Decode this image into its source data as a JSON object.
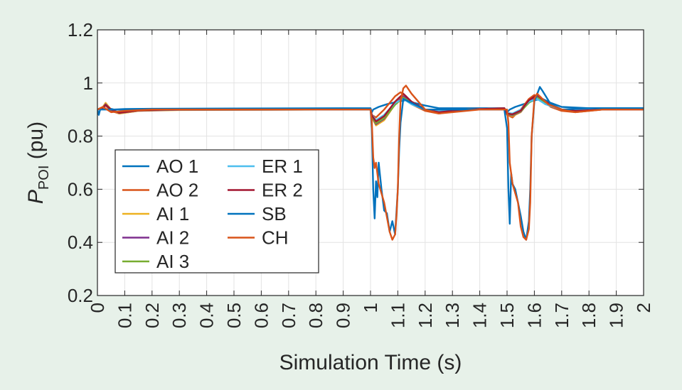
{
  "chart_data": {
    "type": "line",
    "title": "",
    "xlabel": "Simulation Time (s)",
    "ylabel": {
      "main": "P",
      "sub": "POI",
      "suffix": " (pu)"
    },
    "xlim": [
      0,
      2
    ],
    "ylim": [
      0.2,
      1.2
    ],
    "grid": true,
    "legend_position": "lower-left",
    "xticks": [
      0,
      0.1,
      0.2,
      0.3,
      0.4,
      0.5,
      0.6,
      0.7,
      0.8,
      0.9,
      1,
      1.1,
      1.2,
      1.3,
      1.4,
      1.5,
      1.6,
      1.7,
      1.8,
      1.9,
      2
    ],
    "xtick_labels": [
      "0",
      "0.1",
      "0.2",
      "0.3",
      "0.4",
      "0.5",
      "0.6",
      "0.7",
      "0.8",
      "0.9",
      "1",
      "1.1",
      "1.2",
      "1.3",
      "1.4",
      "1.5",
      "1.6",
      "1.7",
      "1.8",
      "1.9",
      "2"
    ],
    "yticks": [
      0.2,
      0.4,
      0.6,
      0.8,
      1.0,
      1.2
    ],
    "ytick_labels": [
      "0.2",
      "0.4",
      "0.6",
      "0.8",
      "1",
      "1.2"
    ],
    "series": [
      {
        "name": "AO 1",
        "color": "#0072bd",
        "x": [
          0,
          0.02,
          0.03,
          0.04,
          0.06,
          0.1,
          0.2,
          0.5,
          0.9,
          1.0,
          1.005,
          1.01,
          1.03,
          1.06,
          1.1,
          1.13,
          1.16,
          1.2,
          1.25,
          1.3,
          1.4,
          1.49,
          1.5,
          1.51,
          1.53,
          1.56,
          1.6,
          1.63,
          1.66,
          1.7,
          1.8,
          2.0
        ],
        "y": [
          0.9,
          0.905,
          0.915,
          0.905,
          0.9,
          0.902,
          0.903,
          0.904,
          0.905,
          0.905,
          0.89,
          0.9,
          0.91,
          0.92,
          0.93,
          0.935,
          0.925,
          0.915,
          0.905,
          0.905,
          0.905,
          0.905,
          0.89,
          0.9,
          0.91,
          0.92,
          0.935,
          0.94,
          0.925,
          0.91,
          0.905,
          0.905
        ]
      },
      {
        "name": "AO 2",
        "color": "#d95319",
        "x": [
          0,
          0.02,
          0.03,
          0.05,
          0.08,
          0.15,
          0.3,
          0.9,
          1.0,
          1.005,
          1.02,
          1.05,
          1.09,
          1.11,
          1.13,
          1.15,
          1.2,
          1.25,
          1.35,
          1.49,
          1.5,
          1.52,
          1.55,
          1.58,
          1.6,
          1.63,
          1.66,
          1.7,
          1.75,
          1.85,
          2.0
        ],
        "y": [
          0.9,
          0.905,
          0.915,
          0.895,
          0.885,
          0.895,
          0.9,
          0.9,
          0.9,
          0.88,
          0.87,
          0.9,
          0.95,
          0.965,
          0.95,
          0.92,
          0.895,
          0.885,
          0.9,
          0.905,
          0.88,
          0.87,
          0.9,
          0.94,
          0.955,
          0.935,
          0.91,
          0.895,
          0.89,
          0.9,
          0.9
        ]
      },
      {
        "name": "AI 1",
        "color": "#edb120",
        "x": [
          0,
          0.02,
          0.03,
          0.05,
          0.08,
          0.15,
          0.3,
          0.9,
          1.0,
          1.005,
          1.02,
          1.05,
          1.09,
          1.12,
          1.15,
          1.2,
          1.25,
          1.35,
          1.49,
          1.5,
          1.52,
          1.55,
          1.58,
          1.61,
          1.64,
          1.7,
          1.75,
          1.85,
          2.0
        ],
        "y": [
          0.9,
          0.91,
          0.925,
          0.9,
          0.885,
          0.895,
          0.898,
          0.9,
          0.9,
          0.87,
          0.84,
          0.86,
          0.92,
          0.955,
          0.93,
          0.9,
          0.89,
          0.9,
          0.905,
          0.88,
          0.875,
          0.89,
          0.93,
          0.955,
          0.93,
          0.9,
          0.895,
          0.9,
          0.9
        ]
      },
      {
        "name": "AI 2",
        "color": "#7e2f8e",
        "x": [
          0,
          0.02,
          0.03,
          0.05,
          0.08,
          0.15,
          0.3,
          0.9,
          1.0,
          1.005,
          1.02,
          1.05,
          1.09,
          1.12,
          1.15,
          1.2,
          1.25,
          1.35,
          1.49,
          1.5,
          1.52,
          1.55,
          1.58,
          1.61,
          1.64,
          1.7,
          1.75,
          1.85,
          2.0
        ],
        "y": [
          0.9,
          0.908,
          0.92,
          0.9,
          0.887,
          0.896,
          0.899,
          0.9,
          0.9,
          0.872,
          0.845,
          0.865,
          0.92,
          0.95,
          0.928,
          0.9,
          0.892,
          0.9,
          0.905,
          0.882,
          0.878,
          0.892,
          0.928,
          0.95,
          0.928,
          0.9,
          0.896,
          0.9,
          0.9
        ]
      },
      {
        "name": "AI 3",
        "color": "#77ac30",
        "x": [
          0,
          0.02,
          0.03,
          0.05,
          0.08,
          0.15,
          0.3,
          0.9,
          1.0,
          1.005,
          1.02,
          1.05,
          1.09,
          1.12,
          1.15,
          1.2,
          1.25,
          1.35,
          1.49,
          1.5,
          1.52,
          1.55,
          1.58,
          1.61,
          1.64,
          1.7,
          1.75,
          1.85,
          2.0
        ],
        "y": [
          0.9,
          0.907,
          0.918,
          0.9,
          0.888,
          0.897,
          0.9,
          0.9,
          0.9,
          0.874,
          0.848,
          0.868,
          0.918,
          0.945,
          0.925,
          0.9,
          0.893,
          0.9,
          0.905,
          0.884,
          0.88,
          0.894,
          0.925,
          0.945,
          0.925,
          0.9,
          0.897,
          0.9,
          0.9
        ]
      },
      {
        "name": "ER 1",
        "color": "#4dbeee",
        "x": [
          0,
          0.02,
          0.03,
          0.05,
          0.08,
          0.15,
          0.3,
          0.9,
          1.0,
          1.005,
          1.02,
          1.05,
          1.09,
          1.12,
          1.15,
          1.2,
          1.25,
          1.35,
          1.49,
          1.5,
          1.52,
          1.55,
          1.58,
          1.61,
          1.64,
          1.7,
          1.75,
          1.85,
          2.0
        ],
        "y": [
          0.9,
          0.906,
          0.916,
          0.9,
          0.889,
          0.898,
          0.9,
          0.9,
          0.9,
          0.88,
          0.86,
          0.88,
          0.925,
          0.94,
          0.92,
          0.9,
          0.893,
          0.9,
          0.905,
          0.888,
          0.885,
          0.9,
          0.93,
          0.94,
          0.92,
          0.9,
          0.897,
          0.9,
          0.9
        ]
      },
      {
        "name": "ER 2",
        "color": "#a2142f",
        "x": [
          0,
          0.02,
          0.03,
          0.05,
          0.08,
          0.15,
          0.3,
          0.9,
          1.0,
          1.005,
          1.02,
          1.05,
          1.09,
          1.12,
          1.15,
          1.2,
          1.25,
          1.35,
          1.49,
          1.5,
          1.52,
          1.55,
          1.58,
          1.61,
          1.64,
          1.7,
          1.75,
          1.85,
          2.0
        ],
        "y": [
          0.9,
          0.907,
          0.917,
          0.9,
          0.888,
          0.897,
          0.9,
          0.9,
          0.9,
          0.878,
          0.855,
          0.875,
          0.93,
          0.96,
          0.93,
          0.9,
          0.89,
          0.9,
          0.905,
          0.885,
          0.882,
          0.896,
          0.935,
          0.955,
          0.93,
          0.9,
          0.895,
          0.9,
          0.9
        ]
      },
      {
        "name": "SB",
        "color": "#0072bd",
        "x": [
          0,
          0.005,
          0.01,
          0.05,
          0.1,
          0.2,
          0.5,
          0.9,
          1.0,
          1.005,
          1.01,
          1.015,
          1.02,
          1.025,
          1.03,
          1.04,
          1.05,
          1.06,
          1.07,
          1.08,
          1.09,
          1.1,
          1.105,
          1.11,
          1.12,
          1.14,
          1.2,
          1.3,
          1.49,
          1.5,
          1.505,
          1.51,
          1.515,
          1.52,
          1.53,
          1.54,
          1.55,
          1.56,
          1.57,
          1.58,
          1.585,
          1.59,
          1.6,
          1.62,
          1.63,
          1.66,
          1.7,
          1.8,
          2.0
        ],
        "y": [
          0.9,
          0.88,
          0.9,
          0.9,
          0.9,
          0.9,
          0.9,
          0.9,
          0.9,
          0.83,
          0.6,
          0.49,
          0.63,
          0.57,
          0.7,
          0.6,
          0.52,
          0.51,
          0.44,
          0.48,
          0.43,
          0.6,
          0.75,
          0.85,
          0.94,
          0.93,
          0.9,
          0.9,
          0.9,
          0.83,
          0.6,
          0.47,
          0.66,
          0.62,
          0.6,
          0.55,
          0.5,
          0.44,
          0.41,
          0.48,
          0.6,
          0.8,
          0.93,
          0.985,
          0.97,
          0.92,
          0.9,
          0.905,
          0.905
        ]
      },
      {
        "name": "CH",
        "color": "#d95319",
        "x": [
          0,
          0.02,
          0.05,
          0.1,
          0.2,
          0.5,
          0.9,
          1.0,
          1.005,
          1.01,
          1.015,
          1.02,
          1.03,
          1.05,
          1.07,
          1.08,
          1.09,
          1.095,
          1.1,
          1.105,
          1.11,
          1.12,
          1.13,
          1.15,
          1.2,
          1.25,
          1.3,
          1.4,
          1.5,
          1.505,
          1.51,
          1.52,
          1.54,
          1.55,
          1.56,
          1.57,
          1.58,
          1.585,
          1.59,
          1.6,
          1.61,
          1.65,
          1.7,
          1.75,
          1.85,
          2.0
        ],
        "y": [
          0.9,
          0.91,
          0.89,
          0.895,
          0.9,
          0.9,
          0.9,
          0.9,
          0.85,
          0.72,
          0.68,
          0.7,
          0.62,
          0.55,
          0.44,
          0.41,
          0.43,
          0.5,
          0.6,
          0.8,
          0.93,
          0.98,
          0.99,
          0.96,
          0.9,
          0.885,
          0.89,
          0.9,
          0.9,
          0.85,
          0.7,
          0.62,
          0.55,
          0.46,
          0.42,
          0.41,
          0.45,
          0.55,
          0.8,
          0.94,
          0.96,
          0.92,
          0.9,
          0.89,
          0.9,
          0.9
        ]
      }
    ]
  }
}
